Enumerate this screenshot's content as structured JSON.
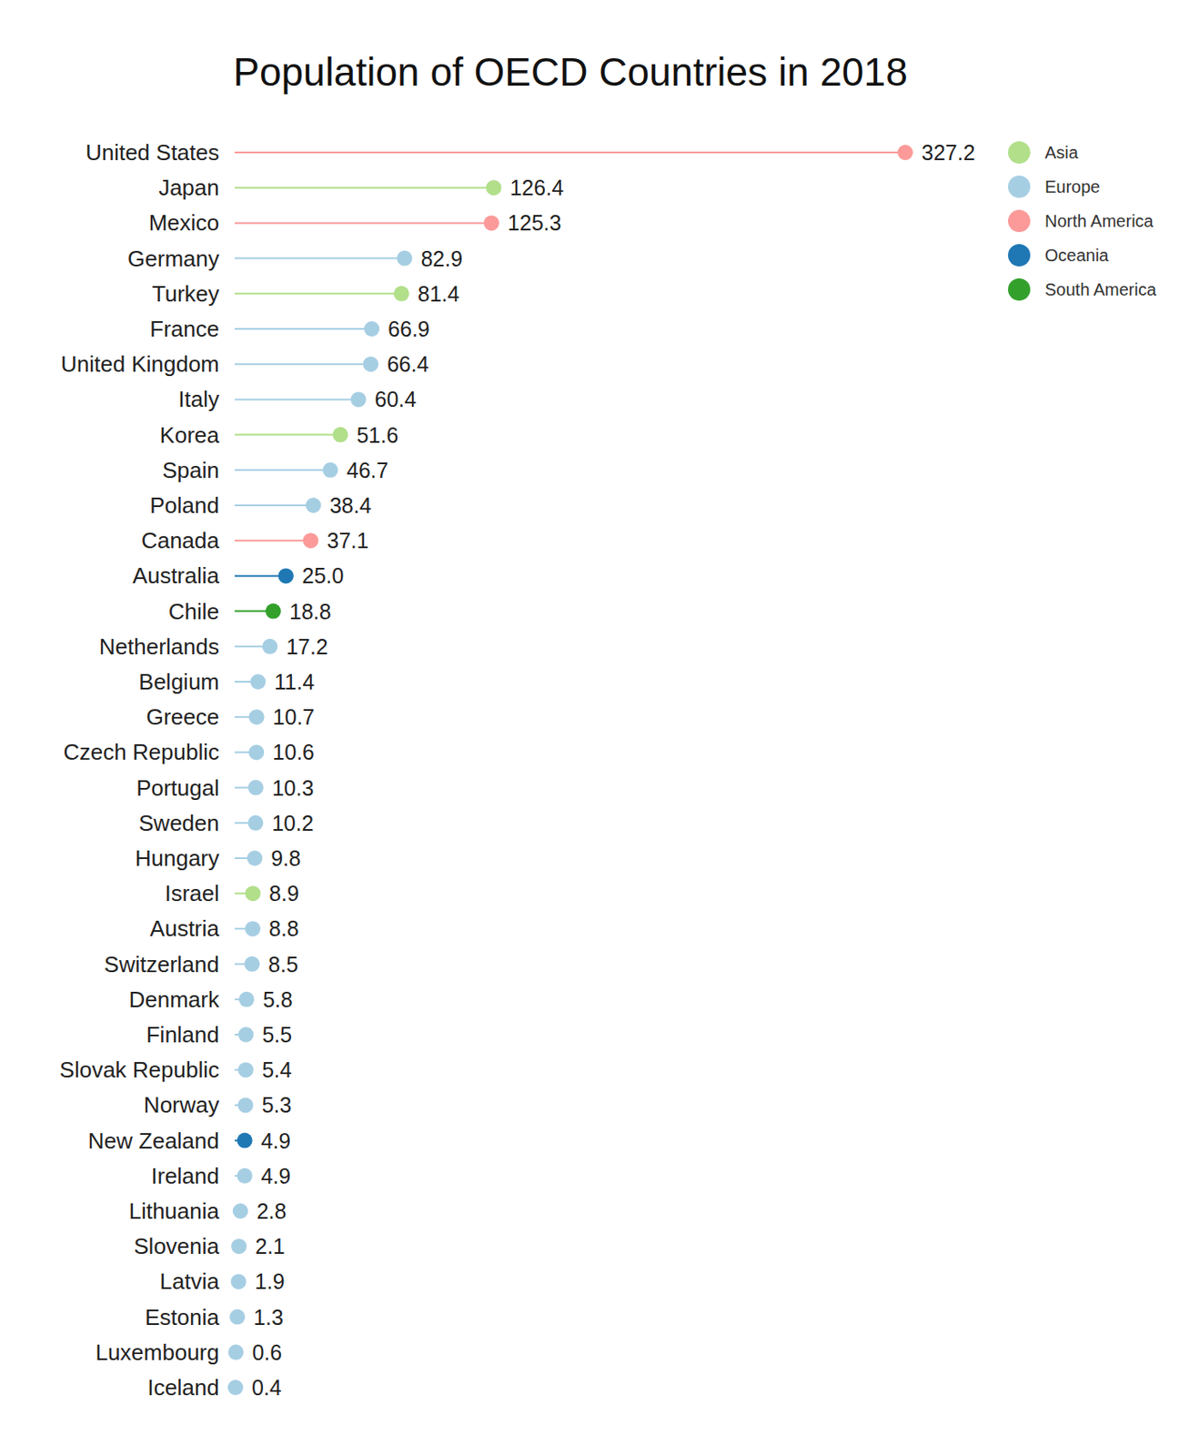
{
  "chart_data": {
    "type": "lollipop",
    "title": "Population of OECD Countries in 2018",
    "orientation": "horizontal",
    "data_labels": true,
    "tick_labels": "y",
    "marker": "circle",
    "legend": "top-right",
    "xlim": [
      0,
      327.2
    ],
    "categories": [
      "United States",
      "Japan",
      "Mexico",
      "Germany",
      "Turkey",
      "France",
      "United Kingdom",
      "Italy",
      "Korea",
      "Spain",
      "Poland",
      "Canada",
      "Australia",
      "Chile",
      "Netherlands",
      "Belgium",
      "Greece",
      "Czech Republic",
      "Portugal",
      "Sweden",
      "Hungary",
      "Israel",
      "Austria",
      "Switzerland",
      "Denmark",
      "Finland",
      "Slovak Republic",
      "Norway",
      "New Zealand",
      "Ireland",
      "Lithuania",
      "Slovenia",
      "Latvia",
      "Estonia",
      "Luxembourg",
      "Iceland"
    ],
    "series": [
      {
        "name": "Asia",
        "color": "#b2df8a",
        "values": [
          null,
          126.4,
          null,
          null,
          81.4,
          null,
          null,
          null,
          51.6,
          null,
          null,
          null,
          null,
          null,
          null,
          null,
          null,
          null,
          null,
          null,
          null,
          8.9,
          null,
          null,
          null,
          null,
          null,
          null,
          null,
          null,
          null,
          null,
          null,
          null,
          null,
          null
        ]
      },
      {
        "name": "Europe",
        "color": "#a6cee3",
        "values": [
          null,
          null,
          null,
          82.9,
          null,
          66.9,
          66.4,
          60.4,
          null,
          46.7,
          38.4,
          null,
          null,
          null,
          17.2,
          11.4,
          10.7,
          10.6,
          10.3,
          10.2,
          9.8,
          null,
          8.8,
          8.5,
          5.8,
          5.5,
          5.4,
          5.3,
          null,
          4.9,
          2.8,
          2.1,
          1.9,
          1.3,
          0.6,
          0.4
        ]
      },
      {
        "name": "North America",
        "color": "#fb9a99",
        "values": [
          327.2,
          null,
          125.3,
          null,
          null,
          null,
          null,
          null,
          null,
          null,
          null,
          37.1,
          null,
          null,
          null,
          null,
          null,
          null,
          null,
          null,
          null,
          null,
          null,
          null,
          null,
          null,
          null,
          null,
          null,
          null,
          null,
          null,
          null,
          null,
          null,
          null
        ]
      },
      {
        "name": "Oceania",
        "color": "#1f78b4",
        "values": [
          null,
          null,
          null,
          null,
          null,
          null,
          null,
          null,
          null,
          null,
          null,
          null,
          25.0,
          null,
          null,
          null,
          null,
          null,
          null,
          null,
          null,
          null,
          null,
          null,
          null,
          null,
          null,
          null,
          4.9,
          null,
          null,
          null,
          null,
          null,
          null,
          null
        ],
        "value_labels": [
          null,
          null,
          null,
          null,
          null,
          null,
          null,
          null,
          null,
          null,
          null,
          null,
          "25.0",
          null,
          null,
          null,
          null,
          null,
          null,
          null,
          null,
          null,
          null,
          null,
          null,
          null,
          null,
          null,
          "4.9",
          null,
          null,
          null,
          null,
          null,
          null,
          null
        ]
      },
      {
        "name": "South America",
        "color": "#33a02c",
        "values": [
          null,
          null,
          null,
          null,
          null,
          null,
          null,
          null,
          null,
          null,
          null,
          null,
          null,
          18.8,
          null,
          null,
          null,
          null,
          null,
          null,
          null,
          null,
          null,
          null,
          null,
          null,
          null,
          null,
          null,
          null,
          null,
          null,
          null,
          null,
          null,
          null
        ]
      }
    ]
  }
}
